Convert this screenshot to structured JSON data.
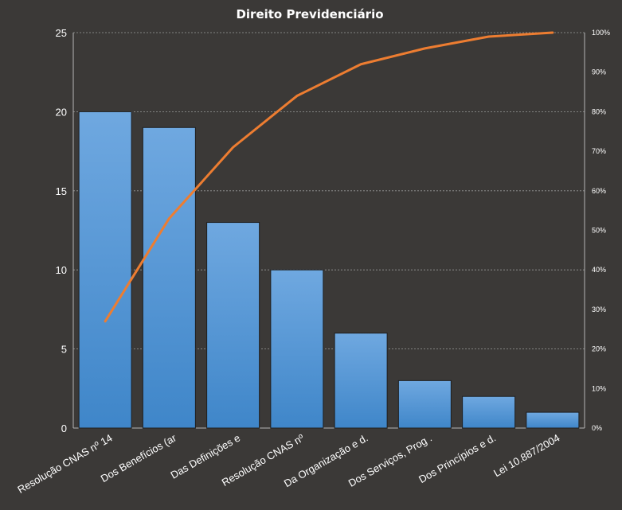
{
  "chart_data": {
    "type": "bar",
    "title": "Direito  Previdenciário",
    "xlabel": "",
    "ylabel": "",
    "categories": [
      "Resolução CNAS nº 14",
      "Dos Benefícios (ar",
      "Das Definições e",
      "Resolução CNAS nº",
      "Da Organização e d.",
      "Dos Serviços, Prog .",
      "Dos Princípios e d.",
      "Lei 10.887/2004"
    ],
    "values": [
      20,
      19,
      13,
      10,
      6,
      3,
      2,
      1
    ],
    "cumulative_percent": [
      27,
      53,
      71,
      84,
      92,
      96,
      99,
      100
    ],
    "ylim": [
      0,
      25
    ],
    "yticks": [
      0,
      5,
      10,
      15,
      20,
      25
    ],
    "y2lim": [
      0,
      100
    ],
    "y2ticks": [
      "0%",
      "10%",
      "20%",
      "30%",
      "40%",
      "50%",
      "60%",
      "70%",
      "80%",
      "90%",
      "100%"
    ],
    "grid": true,
    "legend": "none",
    "colors": {
      "background": "#3b3937",
      "bar_top": "#6fa8e0",
      "bar_bottom": "#3f86c9",
      "bar_edge": "#1f1f1f",
      "line": "#ed7d31",
      "grid": "#9a9a9a",
      "text": "#ffffff"
    }
  }
}
